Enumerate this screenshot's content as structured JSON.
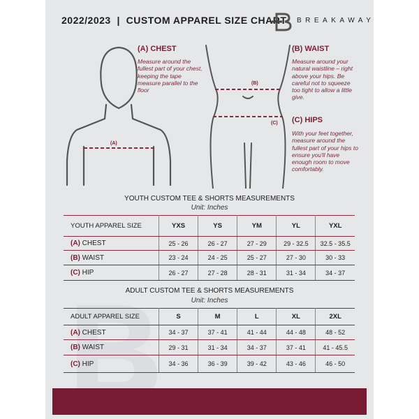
{
  "header": {
    "title": "2022/2023  |  CUSTOM APPAREL SIZE CHART",
    "brand": "BREAKAWAY",
    "logo_letter": "B"
  },
  "colors": {
    "accent": "#771b32",
    "background": "#e6e7e9"
  },
  "guides": {
    "chest": {
      "title": "(A) CHEST",
      "marker": "(A)",
      "text": "Measure around the fullest part of your chest, keeping the tape measure parallel to the floor"
    },
    "waist": {
      "title": "(B) WAIST",
      "marker": "(B)",
      "text": "Measure around your natural waistline – right above your hips. Be careful not to squeeze too tight to allow a little give."
    },
    "hips": {
      "title": "(C) HIPS",
      "marker": "(C)",
      "text": "With your feet together, measure around the fullest part of your hips to ensure you'll have enough room to move comfortably."
    }
  },
  "youth": {
    "title": "YOUTH CUSTOM TEE & SHORTS MEASUREMENTS",
    "unit": "Unit: Inches",
    "header": "YOUTH APPAREL SIZE",
    "sizes": [
      "YXS",
      "YS",
      "YM",
      "YL",
      "YXL"
    ],
    "rows": [
      {
        "code": "(A)",
        "label": "CHEST",
        "values": [
          "25 - 26",
          "26 - 27",
          "27 - 29",
          "29 - 32.5",
          "32.5 - 35.5"
        ]
      },
      {
        "code": "(B)",
        "label": "WAIST",
        "values": [
          "23 - 24",
          "24 - 25",
          "25 - 27",
          "27 - 30",
          "30 - 33"
        ]
      },
      {
        "code": "(C)",
        "label": "HIP",
        "values": [
          "26 - 27",
          "27 - 28",
          "28 - 31",
          "31 - 34",
          "34 - 37"
        ]
      }
    ]
  },
  "adult": {
    "title": "ADULT CUSTOM TEE & SHORTS MEASUREMENTS",
    "unit": "Unit: Inches",
    "header": "ADULT APPAREL SIZE",
    "sizes": [
      "S",
      "M",
      "L",
      "XL",
      "2XL"
    ],
    "rows": [
      {
        "code": "(A)",
        "label": "CHEST",
        "values": [
          "34 - 37",
          "37 - 41",
          "41 - 44",
          "44 - 48",
          "48 - 52"
        ]
      },
      {
        "code": "(B)",
        "label": "WAIST",
        "values": [
          "29 - 31",
          "31 - 34",
          "34 - 37",
          "37 - 41",
          "41 - 45.5"
        ]
      },
      {
        "code": "(C)",
        "label": "HIP",
        "values": [
          "34 - 36",
          "36 - 39",
          "39 - 42",
          "43 - 46",
          "46 - 50"
        ]
      }
    ]
  }
}
